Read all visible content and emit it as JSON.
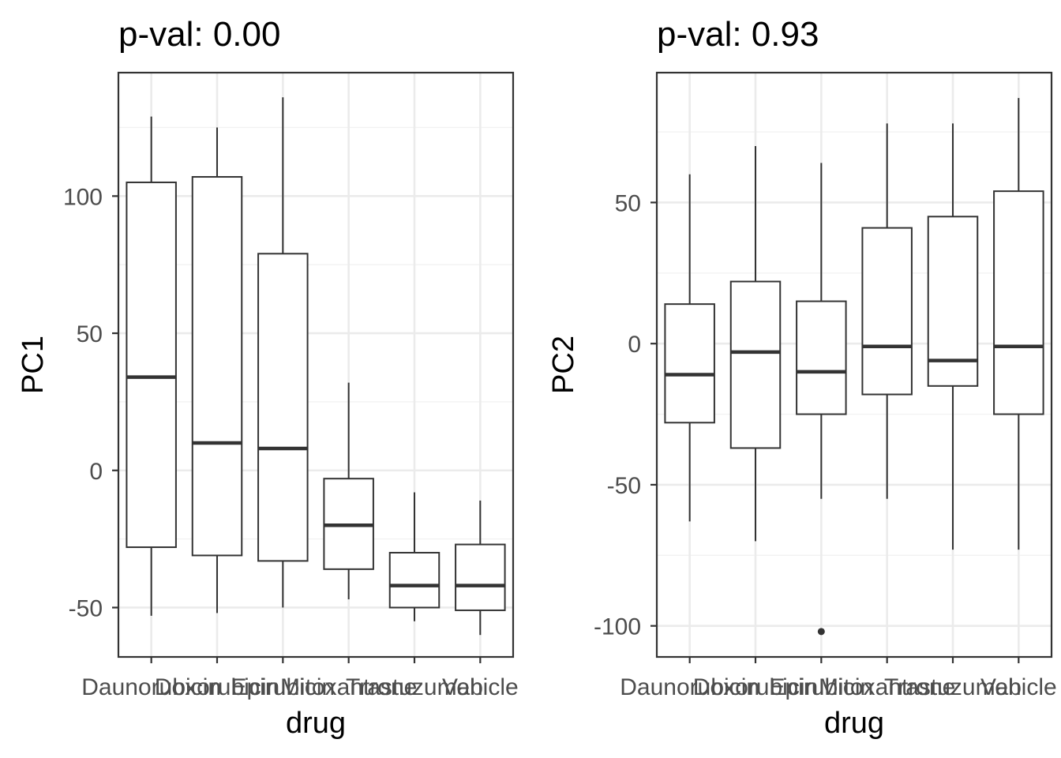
{
  "chart_data": [
    {
      "type": "box",
      "title": "p-val: 0.00",
      "xlabel": "drug",
      "ylabel": "PC1",
      "categories": [
        "Daunorubicin",
        "Doxorubicin",
        "Epirubicin",
        "Mitoxantrone",
        "Trastuzumab",
        "Vehicle"
      ],
      "ylim": [
        -68,
        145
      ],
      "yticks": [
        -50,
        0,
        50,
        100
      ],
      "ytick_labels": [
        "-50",
        "0",
        "50",
        "100"
      ],
      "grid": true,
      "boxes": [
        {
          "category": "Daunorubicin",
          "min": -53,
          "q1": -28,
          "median": 34,
          "q3": 105,
          "max": 129,
          "outliers": []
        },
        {
          "category": "Doxorubicin",
          "min": -52,
          "q1": -31,
          "median": 10,
          "q3": 107,
          "max": 125,
          "outliers": []
        },
        {
          "category": "Epirubicin",
          "min": -50,
          "q1": -33,
          "median": 8,
          "q3": 79,
          "max": 136,
          "outliers": []
        },
        {
          "category": "Mitoxantrone",
          "min": -47,
          "q1": -36,
          "median": -20,
          "q3": -3,
          "max": 32,
          "outliers": []
        },
        {
          "category": "Trastuzumab",
          "min": -55,
          "q1": -50,
          "median": -42,
          "q3": -30,
          "max": -8,
          "outliers": []
        },
        {
          "category": "Vehicle",
          "min": -60,
          "q1": -51,
          "median": -42,
          "q3": -27,
          "max": -11,
          "outliers": []
        }
      ]
    },
    {
      "type": "box",
      "title": "p-val: 0.93",
      "xlabel": "drug",
      "ylabel": "PC2",
      "categories": [
        "Daunorubicin",
        "Doxorubicin",
        "Epirubicin",
        "Mitoxantrone",
        "Trastuzumab",
        "Vehicle"
      ],
      "ylim": [
        -111,
        96
      ],
      "yticks": [
        -100,
        -50,
        0,
        50
      ],
      "ytick_labels": [
        "-100",
        "-50",
        "0",
        "50"
      ],
      "grid": true,
      "boxes": [
        {
          "category": "Daunorubicin",
          "min": -63,
          "q1": -28,
          "median": -11,
          "q3": 14,
          "max": 60,
          "outliers": []
        },
        {
          "category": "Doxorubicin",
          "min": -70,
          "q1": -37,
          "median": -3,
          "q3": 22,
          "max": 70,
          "outliers": []
        },
        {
          "category": "Epirubicin",
          "min": -55,
          "q1": -25,
          "median": -10,
          "q3": 15,
          "max": 64,
          "outliers": [
            -102
          ]
        },
        {
          "category": "Mitoxantrone",
          "min": -55,
          "q1": -18,
          "median": -1,
          "q3": 41,
          "max": 78,
          "outliers": []
        },
        {
          "category": "Trastuzumab",
          "min": -73,
          "q1": -15,
          "median": -6,
          "q3": 45,
          "max": 78,
          "outliers": []
        },
        {
          "category": "Vehicle",
          "min": -73,
          "q1": -25,
          "median": -1,
          "q3": 54,
          "max": 87,
          "outliers": []
        }
      ]
    }
  ]
}
